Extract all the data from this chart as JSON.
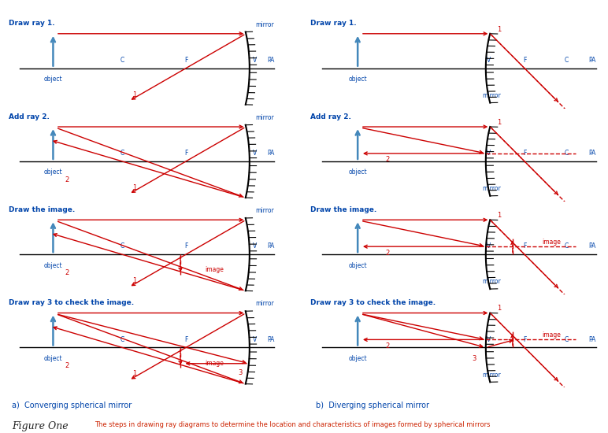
{
  "title": "Figure One",
  "caption": "The steps in drawing ray diagrams to determine the location and characteristics of images formed by spherical mirrors",
  "label_a": "a)  Converging spherical mirror",
  "label_b": "b)  Diverging spherical mirror",
  "ray_color": "#cc0000",
  "object_color": "#4488bb",
  "text_color_blue": "#0044aa",
  "text_color_red": "#cc2200",
  "background": "#ffffff",
  "panel_titles": [
    "Draw ray 1.",
    "Add ray 2.",
    "Draw the image.",
    "Draw ray 3 to check the image."
  ],
  "fig_width": 7.72,
  "fig_height": 5.5
}
